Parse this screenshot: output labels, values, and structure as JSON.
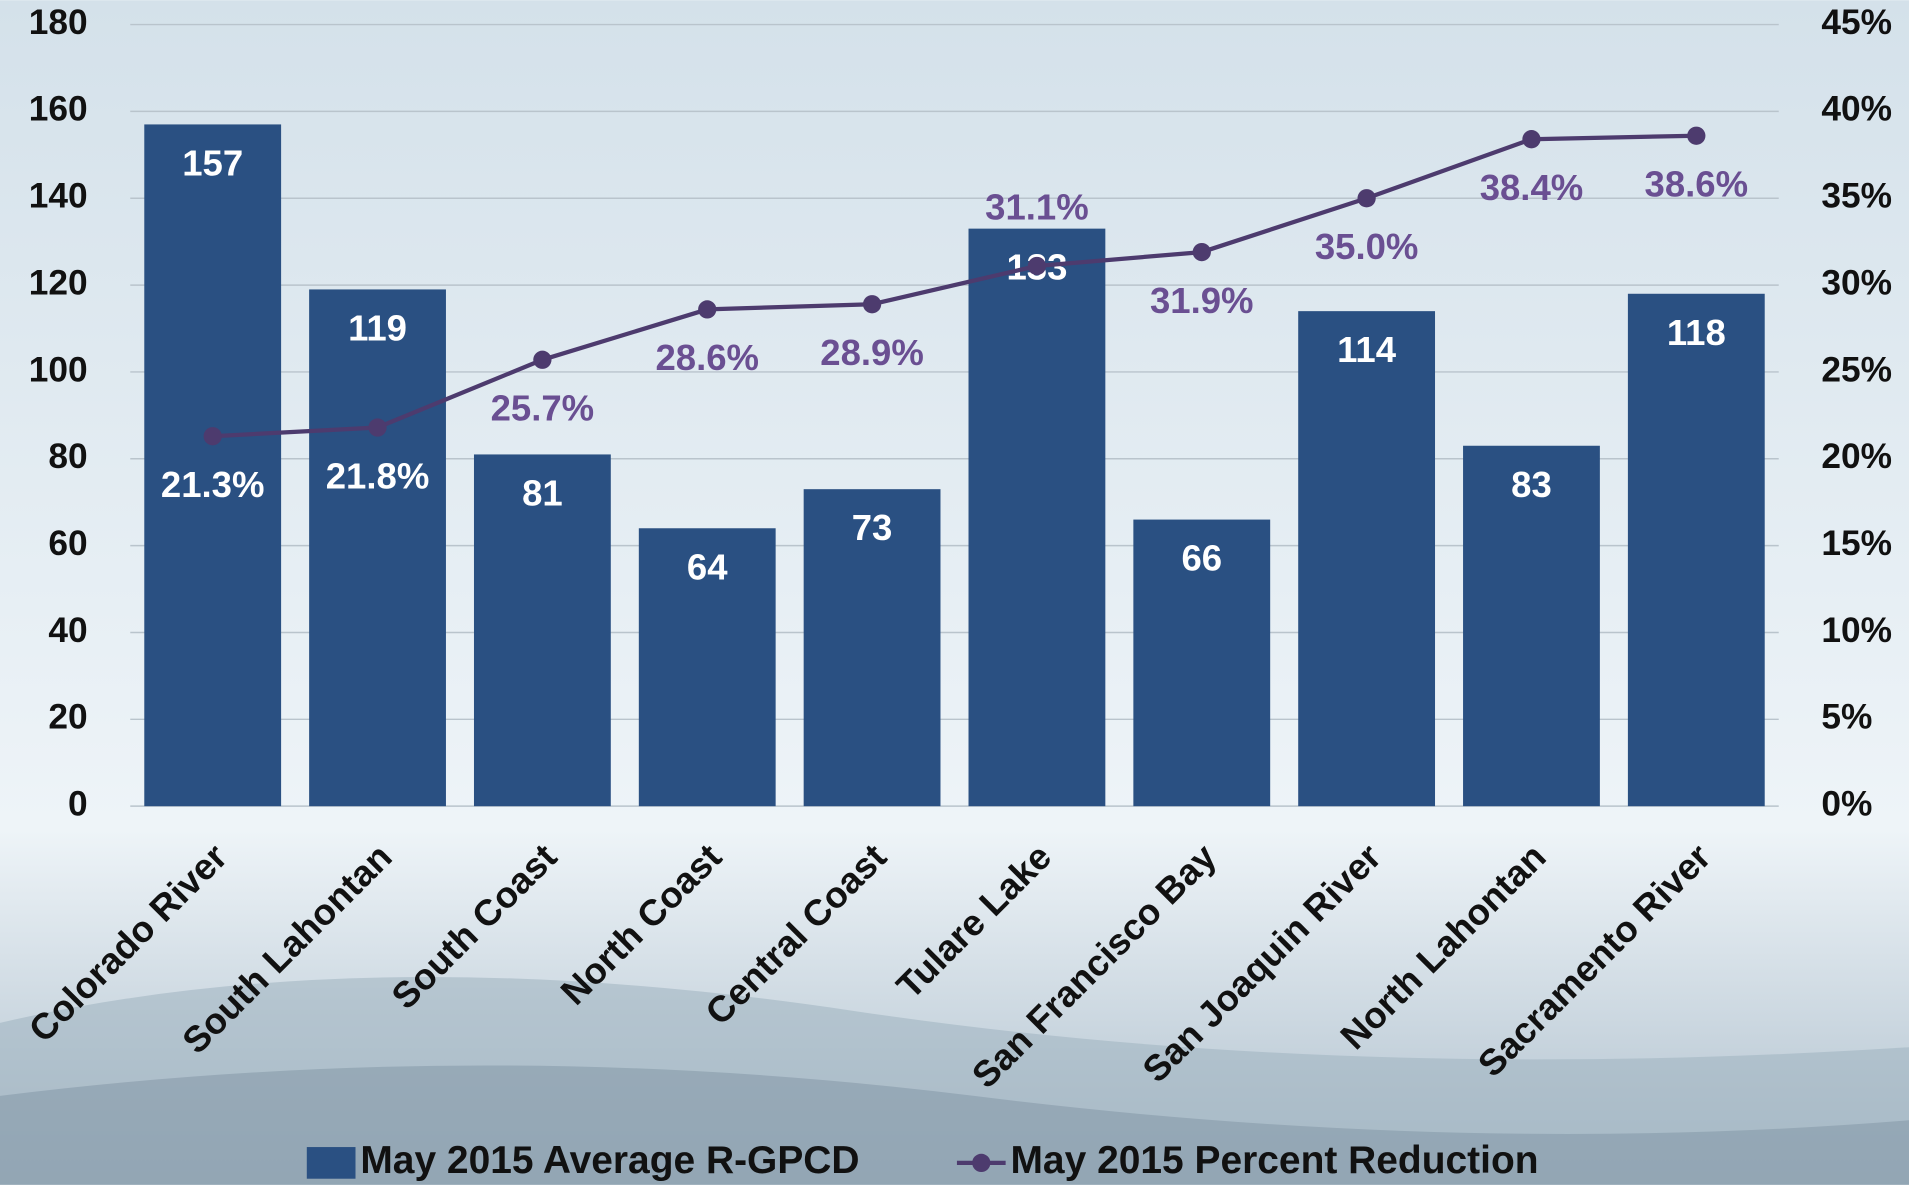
{
  "chart_data": {
    "type": "bar_line",
    "categories": [
      "Colorado River",
      "South Lahontan",
      "South Coast",
      "North Coast",
      "Central Coast",
      "Tulare Lake",
      "San Francisco Bay",
      "San Joaquin River",
      "North Lahontan",
      "Sacramento River"
    ],
    "series": [
      {
        "name": "May 2015 Average R-GPCD",
        "type": "bar",
        "color": "#2a5082",
        "values": [
          157,
          119,
          81,
          64,
          73,
          133,
          66,
          114,
          83,
          118
        ]
      },
      {
        "name": "May 2015 Percent  Reduction",
        "type": "line",
        "axis": "y2",
        "color": "#4d3b6e",
        "values": [
          21.3,
          21.8,
          25.7,
          28.6,
          28.9,
          31.1,
          31.9,
          35.0,
          38.4,
          38.6
        ],
        "value_labels": [
          "21.3%",
          "21.8%",
          "25.7%",
          "28.6%",
          "28.9%",
          "31.1%",
          "31.9%",
          "35.0%",
          "38.4%",
          "38.6%"
        ]
      }
    ],
    "ylim": [
      0,
      180
    ],
    "yticks": [
      0,
      20,
      40,
      60,
      80,
      100,
      120,
      140,
      160,
      180
    ],
    "y2lim": [
      0,
      45
    ],
    "y2ticks": [
      {
        "value": 0,
        "label": "0%"
      },
      {
        "value": 5,
        "label": "5%"
      },
      {
        "value": 10,
        "label": "10%"
      },
      {
        "value": 15,
        "label": "15%"
      },
      {
        "value": 20,
        "label": "20%"
      },
      {
        "value": 25,
        "label": "25%"
      },
      {
        "value": 30,
        "label": "30%"
      },
      {
        "value": 35,
        "label": "35%"
      },
      {
        "value": 40,
        "label": "40%"
      },
      {
        "value": 45,
        "label": "45%"
      }
    ],
    "grid": true
  }
}
